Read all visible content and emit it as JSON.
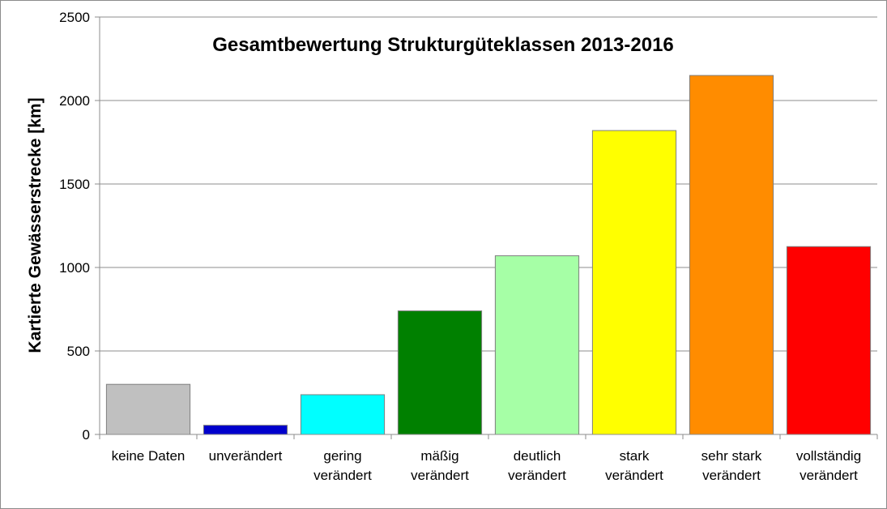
{
  "chart_data": {
    "type": "bar",
    "title": "Gesamtbewertung Strukturgüteklassen 2013-2016",
    "xlabel": "",
    "ylabel": "Kartierte Gewässerstrecke [km]",
    "ylim": [
      0,
      2500
    ],
    "yticks": [
      0,
      500,
      1000,
      1500,
      2000,
      2500
    ],
    "grid": true,
    "legend": "none",
    "categories": [
      [
        "keine Daten"
      ],
      [
        "unverändert"
      ],
      [
        "gering",
        "verändert"
      ],
      [
        "mäßig",
        "verändert"
      ],
      [
        "deutlich",
        "verändert"
      ],
      [
        "stark",
        "verändert"
      ],
      [
        "sehr stark",
        "verändert"
      ],
      [
        "vollständig",
        "verändert"
      ]
    ],
    "values": [
      300,
      55,
      238,
      740,
      1070,
      1820,
      2150,
      1125
    ],
    "colors": [
      "#c0c0c0",
      "#0000cc",
      "#00ffff",
      "#008000",
      "#a6ffa6",
      "#ffff00",
      "#ff8c00",
      "#ff0000"
    ]
  }
}
